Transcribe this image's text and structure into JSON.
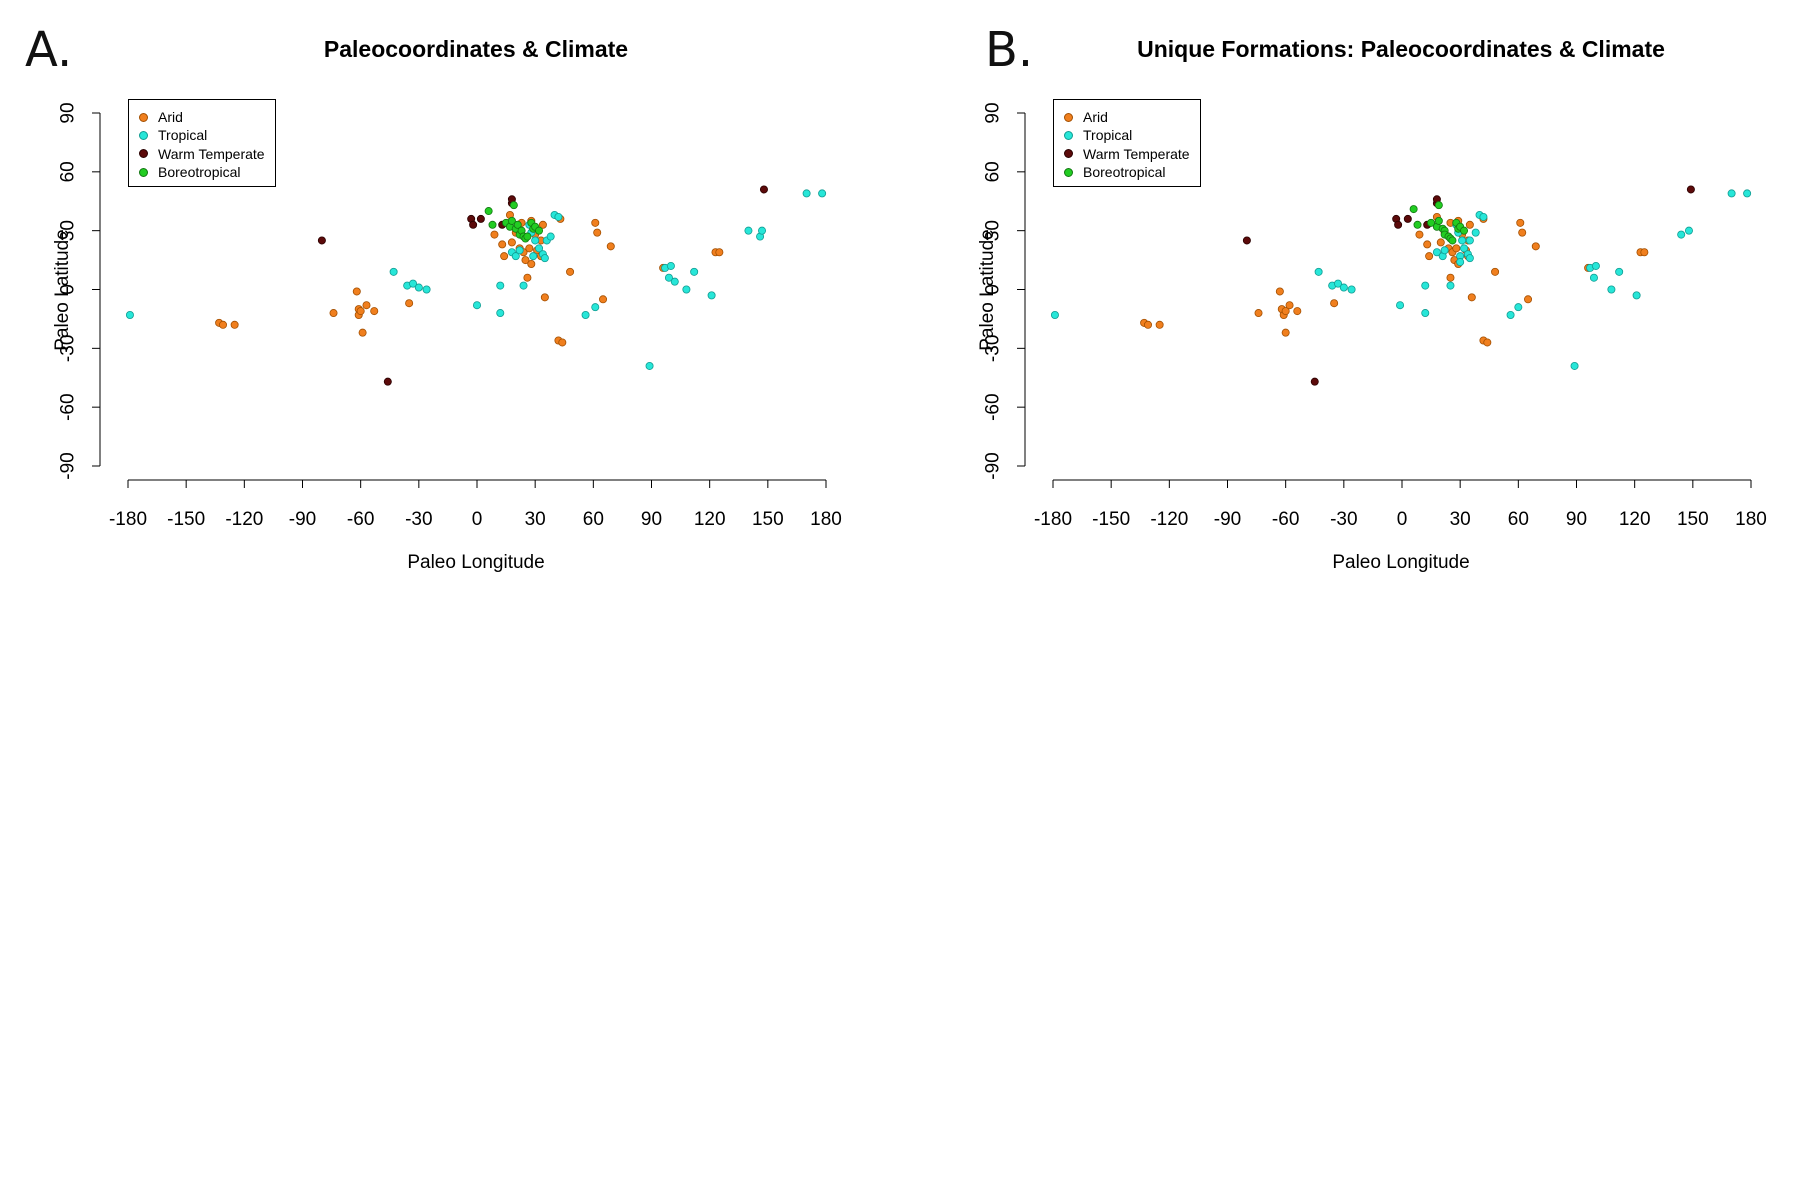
{
  "colors": {
    "arid": "#f07f1e",
    "tropical": "#27e6d8",
    "warm_temperate": "#5c0a0a",
    "boreotropical": "#22cc22"
  },
  "chart_data": [
    {
      "type": "scatter",
      "panel_label": "A.",
      "title": "Paleocoordinates & Climate",
      "xlabel": "Paleo Longitude",
      "ylabel": "Paleo Latitude",
      "xlim": [
        -180,
        180
      ],
      "ylim": [
        -90,
        90
      ],
      "xticks": [
        "-180",
        "-150",
        "-120",
        "-90",
        "-60",
        "-30",
        "0",
        "30",
        "60",
        "90",
        "120",
        "150",
        "180"
      ],
      "yticks": [
        "-90",
        "-60",
        "-30",
        "0",
        "30",
        "60",
        "90"
      ],
      "legend_position": "top-left",
      "series": [
        {
          "name": "Arid",
          "color_key": "arid",
          "points": [
            [
              -133,
              -17
            ],
            [
              -131,
              -18
            ],
            [
              -125,
              -18
            ],
            [
              -74,
              -12
            ],
            [
              -62,
              -1
            ],
            [
              -61,
              -10
            ],
            [
              -61,
              -13
            ],
            [
              -60,
              -11
            ],
            [
              -59,
              -22
            ],
            [
              -57,
              -8
            ],
            [
              -53,
              -11
            ],
            [
              -35,
              -7
            ],
            [
              9,
              28
            ],
            [
              13,
              23
            ],
            [
              14,
              17
            ],
            [
              17,
              38
            ],
            [
              18,
              24
            ],
            [
              20,
              29
            ],
            [
              22,
              21
            ],
            [
              23,
              34
            ],
            [
              24,
              19
            ],
            [
              25,
              15
            ],
            [
              26,
              6
            ],
            [
              27,
              21
            ],
            [
              28,
              35
            ],
            [
              28,
              13
            ],
            [
              30,
              28
            ],
            [
              31,
              20
            ],
            [
              33,
              25
            ],
            [
              33,
              17
            ],
            [
              34,
              33
            ],
            [
              35,
              -4
            ],
            [
              42,
              -26
            ],
            [
              43,
              36
            ],
            [
              44,
              -27
            ],
            [
              48,
              9
            ],
            [
              61,
              34
            ],
            [
              62,
              29
            ],
            [
              65,
              -5
            ],
            [
              69,
              22
            ],
            [
              96,
              11
            ],
            [
              123,
              19
            ],
            [
              125,
              19
            ]
          ]
        },
        {
          "name": "Tropical",
          "color_key": "tropical",
          "points": [
            [
              -179,
              -13
            ],
            [
              -43,
              9
            ],
            [
              -36,
              2
            ],
            [
              -33,
              3
            ],
            [
              -30,
              1
            ],
            [
              -26,
              0
            ],
            [
              0,
              -8
            ],
            [
              12,
              2
            ],
            [
              12,
              -12
            ],
            [
              18,
              19
            ],
            [
              20,
              17
            ],
            [
              22,
              20
            ],
            [
              24,
              2
            ],
            [
              27,
              33
            ],
            [
              28,
              29
            ],
            [
              29,
              17
            ],
            [
              30,
              25
            ],
            [
              32,
              21
            ],
            [
              34,
              18
            ],
            [
              35,
              16
            ],
            [
              36,
              25
            ],
            [
              38,
              27
            ],
            [
              40,
              38
            ],
            [
              42,
              37
            ],
            [
              56,
              -13
            ],
            [
              61,
              -9
            ],
            [
              97,
              11
            ],
            [
              99,
              6
            ],
            [
              100,
              12
            ],
            [
              102,
              4
            ],
            [
              108,
              0
            ],
            [
              112,
              9
            ],
            [
              121,
              -3
            ],
            [
              140,
              30
            ],
            [
              146,
              27
            ],
            [
              147,
              30
            ],
            [
              170,
              49
            ],
            [
              178,
              49
            ],
            [
              89,
              -39
            ]
          ]
        },
        {
          "name": "Warm Temperate",
          "color_key": "warm_temperate",
          "points": [
            [
              -80,
              25
            ],
            [
              -46,
              -47
            ],
            [
              -3,
              36
            ],
            [
              -2,
              33
            ],
            [
              2,
              36
            ],
            [
              13,
              33
            ],
            [
              18,
              44
            ],
            [
              18,
              46
            ],
            [
              148,
              51
            ]
          ]
        },
        {
          "name": "Boreotropical",
          "color_key": "boreotropical",
          "points": [
            [
              6,
              40
            ],
            [
              8,
              33
            ],
            [
              15,
              34
            ],
            [
              17,
              32
            ],
            [
              18,
              35
            ],
            [
              19,
              43
            ],
            [
              20,
              31
            ],
            [
              21,
              33
            ],
            [
              22,
              28
            ],
            [
              23,
              30
            ],
            [
              24,
              27
            ],
            [
              25,
              26
            ],
            [
              26,
              27
            ],
            [
              28,
              34
            ],
            [
              29,
              31
            ],
            [
              30,
              32
            ],
            [
              32,
              30
            ]
          ]
        }
      ]
    },
    {
      "type": "scatter",
      "panel_label": "B.",
      "title": "Unique Formations: Paleocoordinates & Climate",
      "xlabel": "Paleo Longitude",
      "ylabel": "Paleo Latitude",
      "xlim": [
        -180,
        180
      ],
      "ylim": [
        -90,
        90
      ],
      "xticks": [
        "-180",
        "-150",
        "-120",
        "-90",
        "-60",
        "-30",
        "0",
        "30",
        "60",
        "90",
        "120",
        "150",
        "180"
      ],
      "yticks": [
        "-90",
        "-60",
        "-30",
        "0",
        "30",
        "60",
        "90"
      ],
      "legend_position": "top-left",
      "series": [
        {
          "name": "Arid",
          "color_key": "arid",
          "points": [
            [
              -133,
              -17
            ],
            [
              -131,
              -18
            ],
            [
              -125,
              -18
            ],
            [
              -74,
              -12
            ],
            [
              -63,
              -1
            ],
            [
              -62,
              -10
            ],
            [
              -61,
              -13
            ],
            [
              -60,
              -11
            ],
            [
              -60,
              -22
            ],
            [
              -58,
              -8
            ],
            [
              -54,
              -11
            ],
            [
              -35,
              -7
            ],
            [
              9,
              28
            ],
            [
              13,
              23
            ],
            [
              14,
              17
            ],
            [
              18,
              37
            ],
            [
              20,
              24
            ],
            [
              22,
              29
            ],
            [
              24,
              21
            ],
            [
              25,
              34
            ],
            [
              26,
              19
            ],
            [
              27,
              15
            ],
            [
              25,
              6
            ],
            [
              28,
              21
            ],
            [
              29,
              35
            ],
            [
              29,
              13
            ],
            [
              31,
              28
            ],
            [
              33,
              20
            ],
            [
              34,
              25
            ],
            [
              34,
              17
            ],
            [
              35,
              33
            ],
            [
              36,
              -4
            ],
            [
              42,
              -26
            ],
            [
              42,
              36
            ],
            [
              44,
              -27
            ],
            [
              48,
              9
            ],
            [
              61,
              34
            ],
            [
              62,
              29
            ],
            [
              65,
              -5
            ],
            [
              69,
              22
            ],
            [
              96,
              11
            ],
            [
              123,
              19
            ],
            [
              125,
              19
            ]
          ]
        },
        {
          "name": "Tropical",
          "color_key": "tropical",
          "points": [
            [
              -179,
              -13
            ],
            [
              -43,
              9
            ],
            [
              -36,
              2
            ],
            [
              -33,
              3
            ],
            [
              -30,
              1
            ],
            [
              -26,
              0
            ],
            [
              -1,
              -8
            ],
            [
              12,
              2
            ],
            [
              12,
              -12
            ],
            [
              18,
              19
            ],
            [
              21,
              17
            ],
            [
              22,
              20
            ],
            [
              25,
              2
            ],
            [
              28,
              33
            ],
            [
              29,
              29
            ],
            [
              30,
              17
            ],
            [
              31,
              25
            ],
            [
              32,
              21
            ],
            [
              34,
              18
            ],
            [
              35,
              16
            ],
            [
              35,
              25
            ],
            [
              38,
              29
            ],
            [
              40,
              38
            ],
            [
              42,
              37
            ],
            [
              56,
              -13
            ],
            [
              60,
              -9
            ],
            [
              97,
              11
            ],
            [
              99,
              6
            ],
            [
              100,
              12
            ],
            [
              108,
              0
            ],
            [
              112,
              9
            ],
            [
              121,
              -3
            ],
            [
              144,
              28
            ],
            [
              148,
              30
            ],
            [
              170,
              49
            ],
            [
              178,
              49
            ],
            [
              89,
              -39
            ],
            [
              30,
              14
            ]
          ]
        },
        {
          "name": "Warm Temperate",
          "color_key": "warm_temperate",
          "points": [
            [
              -80,
              25
            ],
            [
              -45,
              -47
            ],
            [
              -3,
              36
            ],
            [
              -2,
              33
            ],
            [
              3,
              36
            ],
            [
              13,
              33
            ],
            [
              18,
              44
            ],
            [
              18,
              46
            ],
            [
              149,
              51
            ]
          ]
        },
        {
          "name": "Boreotropical",
          "color_key": "boreotropical",
          "points": [
            [
              6,
              41
            ],
            [
              8,
              33
            ],
            [
              15,
              34
            ],
            [
              18,
              32
            ],
            [
              19,
              35
            ],
            [
              19,
              43
            ],
            [
              21,
              31
            ],
            [
              22,
              30
            ],
            [
              22,
              28
            ],
            [
              24,
              27
            ],
            [
              25,
              26
            ],
            [
              26,
              25
            ],
            [
              28,
              34
            ],
            [
              29,
              31
            ],
            [
              30,
              32
            ],
            [
              32,
              30
            ]
          ]
        }
      ]
    }
  ]
}
